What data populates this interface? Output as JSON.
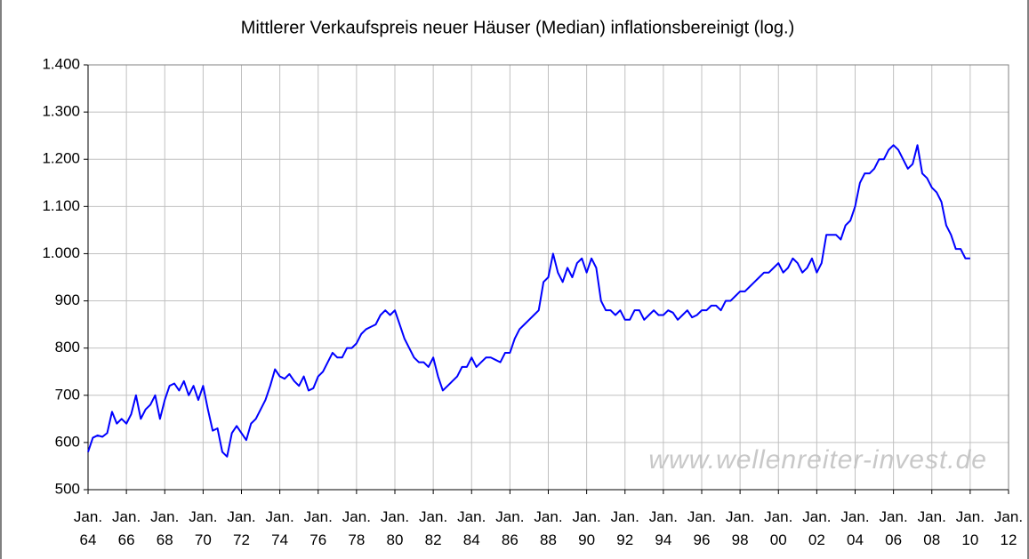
{
  "chart_data": {
    "type": "line",
    "title": "Mittlerer Verkaufspreis neuer Häuser (Median) inflationsbereinigt (log.)",
    "annotation": "www.wellenreiter-invest.de",
    "color": "#0000ff",
    "grid": true,
    "log_scale": false,
    "x": [
      "1964-01",
      "1964-04",
      "1964-07",
      "1964-10",
      "1965-01",
      "1965-04",
      "1965-07",
      "1965-10",
      "1966-01",
      "1966-04",
      "1966-07",
      "1966-10",
      "1967-01",
      "1967-04",
      "1967-07",
      "1967-10",
      "1968-01",
      "1968-04",
      "1968-07",
      "1968-10",
      "1969-01",
      "1969-04",
      "1969-07",
      "1969-10",
      "1970-01",
      "1970-04",
      "1970-07",
      "1970-10",
      "1971-01",
      "1971-04",
      "1971-07",
      "1971-10",
      "1972-01",
      "1972-04",
      "1972-07",
      "1972-10",
      "1973-01",
      "1973-04",
      "1973-07",
      "1973-10",
      "1974-01",
      "1974-04",
      "1974-07",
      "1974-10",
      "1975-01",
      "1975-04",
      "1975-07",
      "1975-10",
      "1976-01",
      "1976-04",
      "1976-07",
      "1976-10",
      "1977-01",
      "1977-04",
      "1977-07",
      "1977-10",
      "1978-01",
      "1978-04",
      "1978-07",
      "1978-10",
      "1979-01",
      "1979-04",
      "1979-07",
      "1979-10",
      "1980-01",
      "1980-04",
      "1980-07",
      "1980-10",
      "1981-01",
      "1981-04",
      "1981-07",
      "1981-10",
      "1982-01",
      "1982-04",
      "1982-07",
      "1982-10",
      "1983-01",
      "1983-04",
      "1983-07",
      "1983-10",
      "1984-01",
      "1984-04",
      "1984-07",
      "1984-10",
      "1985-01",
      "1985-04",
      "1985-07",
      "1985-10",
      "1986-01",
      "1986-04",
      "1986-07",
      "1986-10",
      "1987-01",
      "1987-04",
      "1987-07",
      "1987-10",
      "1988-01",
      "1988-04",
      "1988-07",
      "1988-10",
      "1989-01",
      "1989-04",
      "1989-07",
      "1989-10",
      "1990-01",
      "1990-04",
      "1990-07",
      "1990-10",
      "1991-01",
      "1991-04",
      "1991-07",
      "1991-10",
      "1992-01",
      "1992-04",
      "1992-07",
      "1992-10",
      "1993-01",
      "1993-04",
      "1993-07",
      "1993-10",
      "1994-01",
      "1994-04",
      "1994-07",
      "1994-10",
      "1995-01",
      "1995-04",
      "1995-07",
      "1995-10",
      "1996-01",
      "1996-04",
      "1996-07",
      "1996-10",
      "1997-01",
      "1997-04",
      "1997-07",
      "1997-10",
      "1998-01",
      "1998-04",
      "1998-07",
      "1998-10",
      "1999-01",
      "1999-04",
      "1999-07",
      "1999-10",
      "2000-01",
      "2000-04",
      "2000-07",
      "2000-10",
      "2001-01",
      "2001-04",
      "2001-07",
      "2001-10",
      "2002-01",
      "2002-04",
      "2002-07",
      "2002-10",
      "2003-01",
      "2003-04",
      "2003-07",
      "2003-10",
      "2004-01",
      "2004-04",
      "2004-07",
      "2004-10",
      "2005-01",
      "2005-04",
      "2005-07",
      "2005-10",
      "2006-01",
      "2006-04",
      "2006-07",
      "2006-10",
      "2007-01",
      "2007-04",
      "2007-07",
      "2007-10",
      "2008-01",
      "2008-04",
      "2008-07",
      "2008-10",
      "2009-01",
      "2009-04",
      "2009-07",
      "2009-10",
      "2010-01"
    ],
    "values": [
      580,
      610,
      615,
      612,
      620,
      665,
      640,
      650,
      640,
      660,
      700,
      650,
      670,
      680,
      700,
      650,
      690,
      720,
      725,
      710,
      730,
      700,
      720,
      690,
      720,
      670,
      625,
      630,
      580,
      570,
      620,
      635,
      620,
      605,
      640,
      650,
      670,
      690,
      720,
      755,
      740,
      735,
      745,
      730,
      720,
      740,
      710,
      715,
      740,
      750,
      770,
      790,
      780,
      780,
      800,
      800,
      810,
      830,
      840,
      845,
      850,
      870,
      880,
      870,
      880,
      850,
      820,
      800,
      780,
      770,
      770,
      760,
      780,
      740,
      710,
      720,
      730,
      740,
      760,
      760,
      780,
      760,
      770,
      780,
      780,
      775,
      770,
      790,
      790,
      820,
      840,
      850,
      860,
      870,
      880,
      940,
      950,
      1000,
      960,
      940,
      970,
      950,
      980,
      990,
      960,
      990,
      970,
      900,
      880,
      880,
      870,
      880,
      860,
      860,
      880,
      880,
      860,
      870,
      880,
      870,
      870,
      880,
      875,
      860,
      870,
      880,
      865,
      870,
      880,
      880,
      890,
      890,
      880,
      900,
      900,
      910,
      920,
      920,
      930,
      940,
      950,
      960,
      960,
      970,
      980,
      960,
      970,
      990,
      980,
      960,
      970,
      990,
      960,
      980,
      1040,
      1040,
      1040,
      1030,
      1060,
      1070,
      1100,
      1150,
      1170,
      1170,
      1180,
      1200,
      1200,
      1220,
      1230,
      1220,
      1200,
      1180,
      1190,
      1230,
      1170,
      1160,
      1140,
      1130,
      1110,
      1060,
      1040,
      1010,
      1010,
      990,
      990
    ],
    "xlim": [
      "1964-01",
      "2012-01"
    ],
    "xticks": [
      {
        "value": "1964-01",
        "label": "Jan. 64"
      },
      {
        "value": "1966-01",
        "label": "Jan. 66"
      },
      {
        "value": "1968-01",
        "label": "Jan. 68"
      },
      {
        "value": "1970-01",
        "label": "Jan. 70"
      },
      {
        "value": "1972-01",
        "label": "Jan. 72"
      },
      {
        "value": "1974-01",
        "label": "Jan. 74"
      },
      {
        "value": "1976-01",
        "label": "Jan. 76"
      },
      {
        "value": "1978-01",
        "label": "Jan. 78"
      },
      {
        "value": "1980-01",
        "label": "Jan. 80"
      },
      {
        "value": "1982-01",
        "label": "Jan. 82"
      },
      {
        "value": "1984-01",
        "label": "Jan. 84"
      },
      {
        "value": "1986-01",
        "label": "Jan. 86"
      },
      {
        "value": "1988-01",
        "label": "Jan. 88"
      },
      {
        "value": "1990-01",
        "label": "Jan. 90"
      },
      {
        "value": "1992-01",
        "label": "Jan. 92"
      },
      {
        "value": "1994-01",
        "label": "Jan. 94"
      },
      {
        "value": "1996-01",
        "label": "Jan. 96"
      },
      {
        "value": "1998-01",
        "label": "Jan. 98"
      },
      {
        "value": "2000-01",
        "label": "Jan. 00"
      },
      {
        "value": "2002-01",
        "label": "Jan. 02"
      },
      {
        "value": "2004-01",
        "label": "Jan. 04"
      },
      {
        "value": "2006-01",
        "label": "Jan. 06"
      },
      {
        "value": "2008-01",
        "label": "Jan. 08"
      },
      {
        "value": "2010-01",
        "label": "Jan. 10"
      },
      {
        "value": "2012-01",
        "label": "Jan. 12"
      }
    ],
    "ylim": [
      500,
      1400
    ],
    "yticks": [
      500,
      600,
      700,
      800,
      900,
      {
        "value": 1000,
        "label": "1.000"
      },
      {
        "value": 1100,
        "label": "1.100"
      },
      {
        "value": 1200,
        "label": "1.200"
      },
      {
        "value": 1300,
        "label": "1.300"
      },
      {
        "value": 1400,
        "label": "1.400"
      }
    ]
  }
}
